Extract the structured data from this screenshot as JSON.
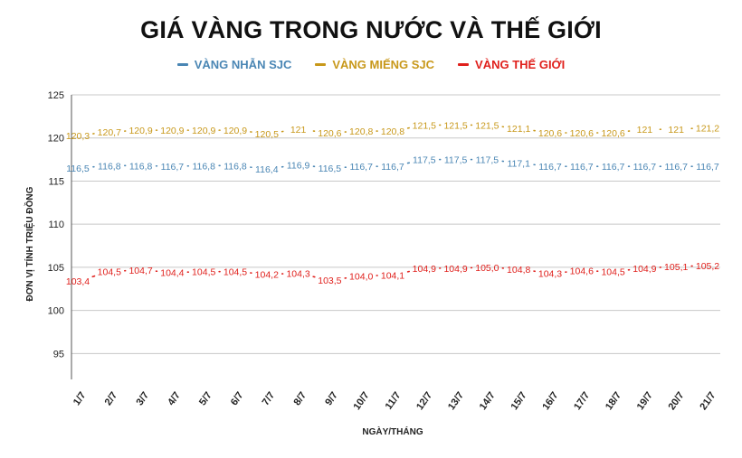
{
  "chart_data": {
    "type": "line",
    "title": "GIÁ VÀNG TRONG NƯỚC VÀ THẾ GIỚI",
    "xlabel": "NGÀY/THÁNG",
    "ylabel": "ĐƠN VỊ TÍNH TRIỆU ĐỒNG",
    "ylim": [
      92,
      125
    ],
    "yticks": [
      "95",
      "100",
      "105",
      "110",
      "115",
      "120",
      "125"
    ],
    "grid": true,
    "legend_position": "top",
    "categories": [
      "1/7",
      "2/7",
      "3/7",
      "4/7",
      "5/7",
      "6/7",
      "7/7",
      "8/7",
      "9/7",
      "10/7",
      "11/7",
      "12/7",
      "13/7",
      "14/7",
      "15/7",
      "16/7",
      "17/7",
      "18/7",
      "19/7",
      "20/7",
      "21/7"
    ],
    "series": [
      {
        "name": "VÀNG NHẪN SJC",
        "color": "#4a86b4",
        "values": [
          116.5,
          116.8,
          116.8,
          116.7,
          116.8,
          116.8,
          116.4,
          116.9,
          116.5,
          116.7,
          116.7,
          117.5,
          117.5,
          117.5,
          117.1,
          116.7,
          116.7,
          116.7,
          116.7,
          116.7,
          116.7
        ],
        "labels": [
          "116,5",
          "116,8",
          "116,8",
          "116,7",
          "116,8",
          "116,8",
          "116,4",
          "116,9",
          "116,5",
          "116,7",
          "116,7",
          "117,5",
          "117,5",
          "117,5",
          "117,1",
          "116,7",
          "116,7",
          "116,7",
          "116,7",
          "116,7",
          "116,7"
        ]
      },
      {
        "name": "VÀNG MIẾNG SJC",
        "color": "#c8981a",
        "values": [
          120.3,
          120.7,
          120.9,
          120.9,
          120.9,
          120.9,
          120.5,
          121,
          120.6,
          120.8,
          120.8,
          121.5,
          121.5,
          121.5,
          121.1,
          120.6,
          120.6,
          120.6,
          121,
          121,
          121.2
        ],
        "labels": [
          "120,3",
          "120,7",
          "120,9",
          "120,9",
          "120,9",
          "120,9",
          "120,5",
          "121",
          "120,6",
          "120,8",
          "120,8",
          "121,5",
          "121,5",
          "121,5",
          "121,1",
          "120,6",
          "120,6",
          "120,6",
          "121",
          "121",
          "121,2"
        ]
      },
      {
        "name": "VÀNG THẾ GIỚI",
        "color": "#e0201c",
        "values": [
          103.4,
          104.5,
          104.7,
          104.4,
          104.5,
          104.5,
          104.2,
          104.3,
          103.5,
          104.0,
          104.1,
          104.9,
          104.9,
          105.0,
          104.8,
          104.3,
          104.6,
          104.5,
          104.9,
          105.1,
          105.2
        ],
        "labels": [
          "103,4",
          "104,5",
          "104,7",
          "104,4",
          "104,5",
          "104,5",
          "104,2",
          "104,3",
          "103,5",
          "104,0",
          "104,1",
          "104,9",
          "104,9",
          "105,0",
          "104,8",
          "104,3",
          "104,6",
          "104,5",
          "104,9",
          "105,1",
          "105,2"
        ]
      }
    ]
  }
}
